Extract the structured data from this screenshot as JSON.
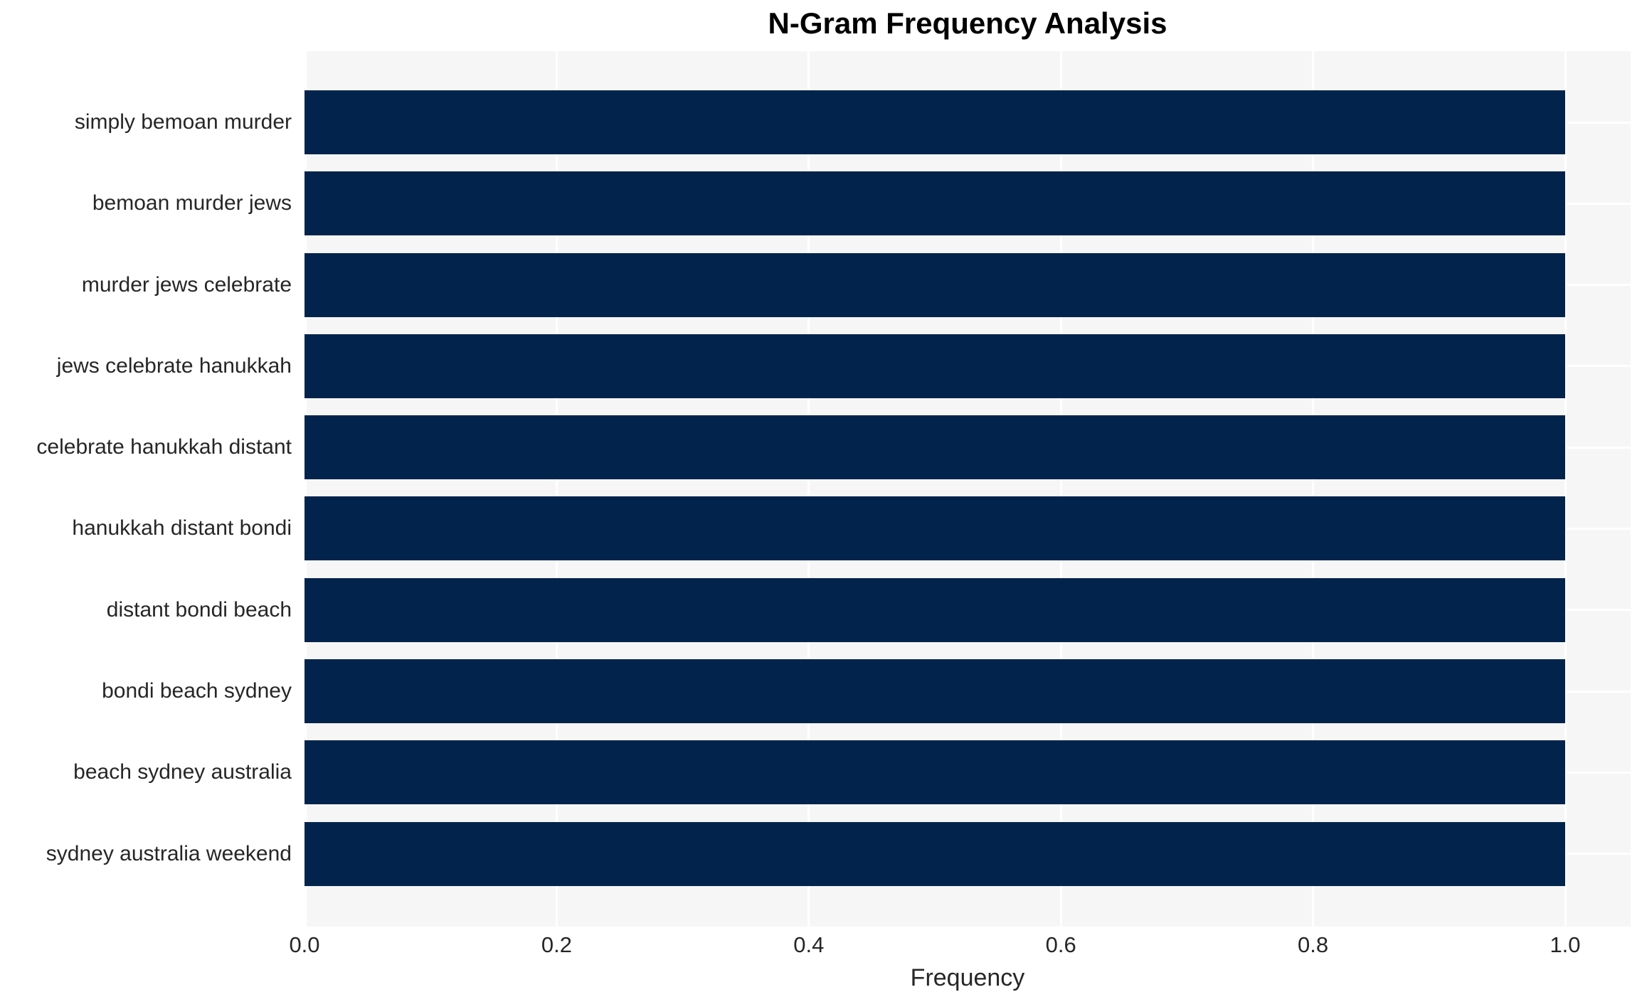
{
  "chart_data": {
    "type": "bar",
    "orientation": "horizontal",
    "title": "N-Gram Frequency Analysis",
    "xlabel": "Frequency",
    "ylabel": "",
    "categories": [
      "simply bemoan murder",
      "bemoan murder jews",
      "murder jews celebrate",
      "jews celebrate hanukkah",
      "celebrate hanukkah distant",
      "hanukkah distant bondi",
      "distant bondi beach",
      "bondi beach sydney",
      "beach sydney australia",
      "sydney australia weekend"
    ],
    "values": [
      1.0,
      1.0,
      1.0,
      1.0,
      1.0,
      1.0,
      1.0,
      1.0,
      1.0,
      1.0
    ],
    "xticks": [
      0.0,
      0.2,
      0.4,
      0.6,
      0.8,
      1.0
    ],
    "xtick_labels": [
      "0.0",
      "0.2",
      "0.4",
      "0.6",
      "0.8",
      "1.0"
    ],
    "xlim": [
      0,
      1.052
    ],
    "grid": true,
    "legend": false,
    "colors": {
      "bar": "#02244c",
      "plot_background": "#f6f6f6",
      "gridline": "#ffffff",
      "title_text": "#000000",
      "axis_text": "#262626"
    }
  }
}
